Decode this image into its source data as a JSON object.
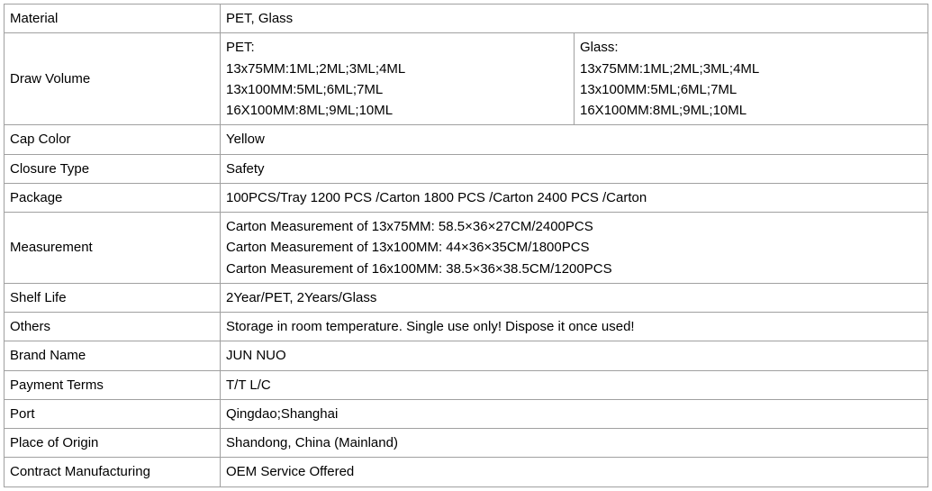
{
  "table": {
    "label_col_width": 240,
    "total_width": 1027,
    "border_color": "#a0a0a0",
    "text_color": "#000000",
    "background_color": "#ffffff",
    "font_size": 15,
    "rows": [
      {
        "label": "Material",
        "type": "simple",
        "value": "PET, Glass"
      },
      {
        "label": "Draw Volume",
        "type": "split",
        "left_lines": [
          "PET:",
          "13x75MM:1ML;2ML;3ML;4ML",
          "13x100MM:5ML;6ML;7ML",
          "16X100MM:8ML;9ML;10ML"
        ],
        "right_lines": [
          "Glass:",
          "13x75MM:1ML;2ML;3ML;4ML",
          "13x100MM:5ML;6ML;7ML",
          "16X100MM:8ML;9ML;10ML"
        ]
      },
      {
        "label": "Cap Color",
        "type": "simple",
        "value": "Yellow"
      },
      {
        "label": "Closure Type",
        "type": "simple",
        "value": "Safety"
      },
      {
        "label": "Package",
        "type": "simple",
        "value": "100PCS/Tray  1200 PCS /Carton  1800 PCS /Carton   2400 PCS /Carton"
      },
      {
        "label": "Measurement",
        "type": "lines",
        "lines": [
          "Carton Measurement of 13x75MM:   58.5×36×27CM/2400PCS",
          "Carton Measurement of 13x100MM: 44×36×35CM/1800PCS",
          "Carton Measurement of 16x100MM: 38.5×36×38.5CM/1200PCS"
        ]
      },
      {
        "label": "Shelf Life",
        "type": "simple",
        "value": "2Year/PET, 2Years/Glass"
      },
      {
        "label": "Others",
        "type": "simple",
        "value": "Storage in room temperature. Single use only! Dispose it once used!"
      },
      {
        "label": "Brand Name",
        "type": "simple",
        "value": "JUN NUO"
      },
      {
        "label": "Payment Terms",
        "type": "simple",
        "value": "T/T L/C"
      },
      {
        "label": "Port",
        "type": "simple",
        "value": "Qingdao;Shanghai"
      },
      {
        "label": "Place of Origin",
        "type": "simple",
        "value": "Shandong, China (Mainland)"
      },
      {
        "label": "Contract Manufacturing",
        "type": "simple",
        "value": "OEM Service Offered"
      }
    ]
  }
}
